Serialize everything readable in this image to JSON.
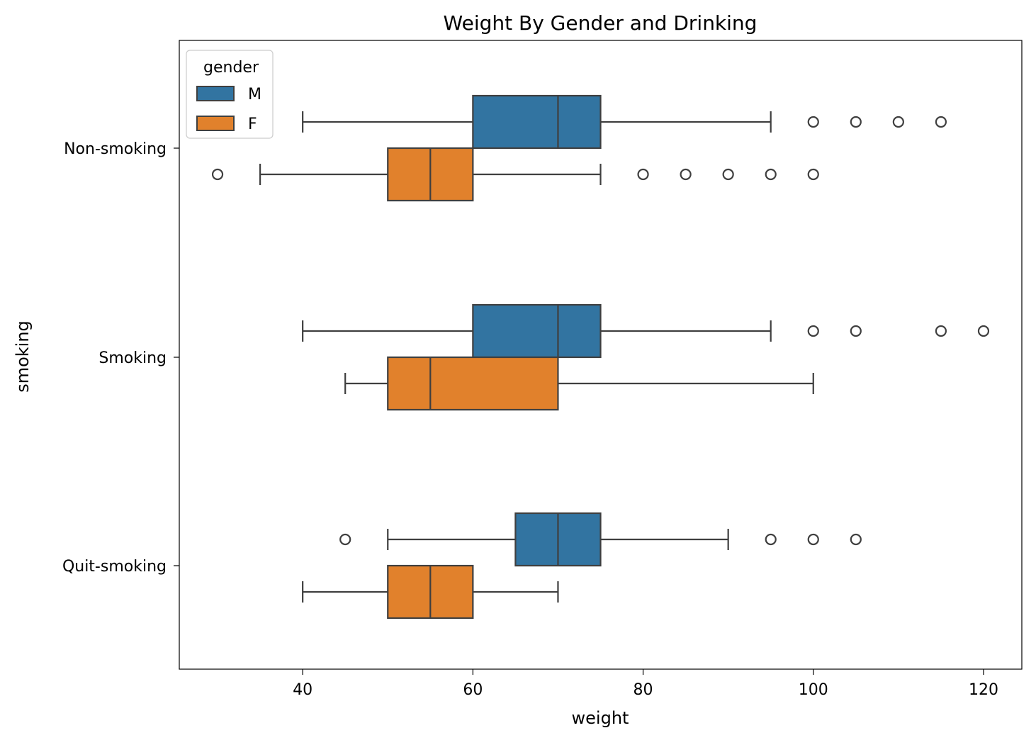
{
  "chart_data": {
    "type": "boxplot",
    "orientation": "horizontal",
    "title": "Weight By Gender and Drinking",
    "xlabel": "weight",
    "ylabel": "smoking",
    "xlim": [
      25.5,
      124.5
    ],
    "xticks": [
      40,
      60,
      80,
      100,
      120
    ],
    "categories": [
      "Non-smoking",
      "Smoking",
      "Quit-smoking"
    ],
    "legend": {
      "title": "gender",
      "location": "top-left"
    },
    "grid": false,
    "series": [
      {
        "name": "M",
        "color": "#3274a1",
        "boxes": [
          {
            "category": "Non-smoking",
            "whisker_low": 40,
            "q1": 60,
            "median": 70,
            "q3": 75,
            "whisker_high": 95,
            "outliers": [
              100,
              105,
              110,
              115
            ]
          },
          {
            "category": "Smoking",
            "whisker_low": 40,
            "q1": 60,
            "median": 70,
            "q3": 75,
            "whisker_high": 95,
            "outliers": [
              100,
              105,
              115,
              120
            ]
          },
          {
            "category": "Quit-smoking",
            "whisker_low": 50,
            "q1": 65,
            "median": 70,
            "q3": 75,
            "whisker_high": 90,
            "outliers": [
              45,
              95,
              100,
              105
            ]
          }
        ]
      },
      {
        "name": "F",
        "color": "#e1812c",
        "boxes": [
          {
            "category": "Non-smoking",
            "whisker_low": 35,
            "q1": 50,
            "median": 55,
            "q3": 60,
            "whisker_high": 75,
            "outliers": [
              30,
              80,
              85,
              90,
              95,
              100
            ]
          },
          {
            "category": "Smoking",
            "whisker_low": 45,
            "q1": 50,
            "median": 55,
            "q3": 70,
            "whisker_high": 100,
            "outliers": []
          },
          {
            "category": "Quit-smoking",
            "whisker_low": 40,
            "q1": 50,
            "median": 55,
            "q3": 60,
            "whisker_high": 70,
            "outliers": []
          }
        ]
      }
    ]
  }
}
